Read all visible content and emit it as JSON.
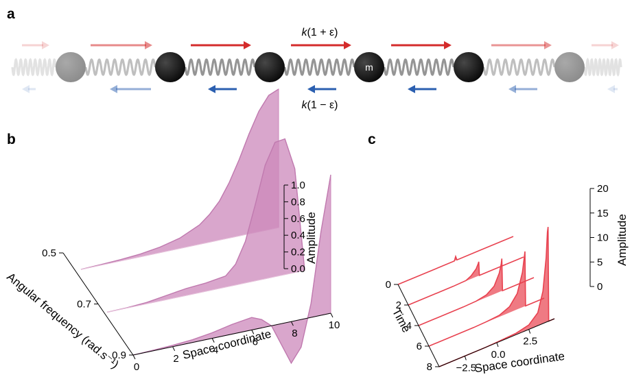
{
  "panels": {
    "a": {
      "label": "a",
      "mass_label": "m",
      "coupling_top": {
        "k": "k",
        "rest": "(1 + ε)"
      },
      "coupling_bottom": {
        "k": "k",
        "rest": "(1 − ε)"
      },
      "forward_color": "#d42b2b",
      "backward_color": "#2b5fb0",
      "spring_color": "#8a8a8a"
    },
    "b": {
      "label": "b"
    },
    "c": {
      "label": "c"
    }
  },
  "chart_data": [
    {
      "type": "area",
      "panel": "b",
      "x_label": "Space coordinate",
      "y_label": "Angular frequency (rad.s⁻¹)",
      "z_label": "Amplitude",
      "x_ticks": [
        "0",
        "2",
        "4",
        "6",
        "8",
        "10"
      ],
      "y_ticks": [
        "0.5",
        "0.7",
        "0.9"
      ],
      "z_ticks": [
        "0.0",
        "0.2",
        "0.4",
        "0.6",
        "0.8",
        "1.0"
      ],
      "xlim": [
        0,
        10
      ],
      "ylim": [
        0.5,
        0.9
      ],
      "zlim": [
        0,
        1
      ],
      "color": "#cc88bb",
      "series": [
        {
          "y": 0.5,
          "x": [
            0,
            1,
            2,
            3,
            4,
            5,
            6,
            6.5,
            7,
            7.5,
            8,
            8.5,
            9,
            9.5,
            10
          ],
          "z": [
            0.0,
            0.004,
            0.01,
            0.02,
            0.04,
            0.075,
            0.14,
            0.2,
            0.28,
            0.4,
            0.55,
            0.72,
            0.87,
            0.97,
            1.0
          ]
        },
        {
          "y": 0.7,
          "x": [
            0,
            1,
            2,
            3,
            4,
            5,
            6,
            6.5,
            7,
            7.5,
            8,
            8.5,
            9,
            9.5,
            10
          ],
          "z": [
            0.0,
            0.002,
            0.01,
            0.03,
            0.05,
            0.06,
            0.08,
            0.15,
            0.3,
            0.55,
            0.82,
            0.97,
            0.98,
            0.75,
            0.0
          ]
        },
        {
          "y": 0.9,
          "x": [
            0,
            1,
            2,
            3,
            4,
            5,
            6,
            6.5,
            7,
            7.5,
            8,
            8.5,
            9,
            9.5,
            10
          ],
          "z": [
            0.0,
            0.004,
            0.01,
            0.02,
            0.04,
            0.07,
            0.09,
            0.06,
            0.0,
            -0.15,
            -0.3,
            -0.2,
            0.1,
            0.6,
            1.0
          ]
        }
      ]
    },
    {
      "type": "area",
      "panel": "c",
      "x_label": "Space coordinate",
      "y_label": "Time",
      "z_label": "Amplitude",
      "x_ticks": [
        "−2.5",
        "0.0",
        "2.5"
      ],
      "y_ticks": [
        "0",
        "2",
        "4",
        "6",
        "8"
      ],
      "z_ticks": [
        "0",
        "5",
        "10",
        "15",
        "20"
      ],
      "xlim": [
        -4.5,
        4.5
      ],
      "ylim": [
        0,
        8
      ],
      "zlim": [
        0,
        20
      ],
      "color": "#e8414f",
      "series": [
        {
          "t": 0,
          "x": [
            -4.5,
            -2,
            -0.1,
            0,
            0.1,
            2,
            4.5
          ],
          "z": [
            0,
            0,
            0,
            0.8,
            0,
            0,
            0
          ]
        },
        {
          "t": 2,
          "x": [
            -4.5,
            -1,
            0,
            0.4,
            0.8,
            0.95,
            1,
            1.05,
            2,
            4.5
          ],
          "z": [
            0,
            0,
            0.1,
            0.6,
            1.6,
            2.4,
            2.8,
            0,
            0,
            0
          ]
        },
        {
          "t": 4,
          "x": [
            -4.5,
            -1,
            0,
            0.8,
            1.4,
            1.8,
            1.95,
            2,
            2.05,
            3,
            4.5
          ],
          "z": [
            0,
            0,
            0.1,
            0.5,
            1.6,
            3.8,
            5.5,
            6.5,
            0,
            0,
            0
          ]
        },
        {
          "t": 6,
          "x": [
            -4.5,
            -1,
            0,
            1,
            1.8,
            2.4,
            2.8,
            2.95,
            3,
            3.05,
            4,
            4.5
          ],
          "z": [
            0,
            0,
            0.1,
            0.3,
            1.2,
            3.2,
            7,
            10,
            11,
            0,
            0,
            0
          ]
        },
        {
          "t": 8,
          "x": [
            -4.5,
            -1,
            0,
            1.5,
            2.5,
            3.2,
            3.6,
            3.85,
            3.95,
            4,
            4.05,
            4.5
          ],
          "z": [
            0,
            0,
            0.1,
            0.3,
            0.9,
            2.6,
            6.5,
            13,
            18,
            19,
            0,
            0
          ]
        }
      ]
    }
  ]
}
